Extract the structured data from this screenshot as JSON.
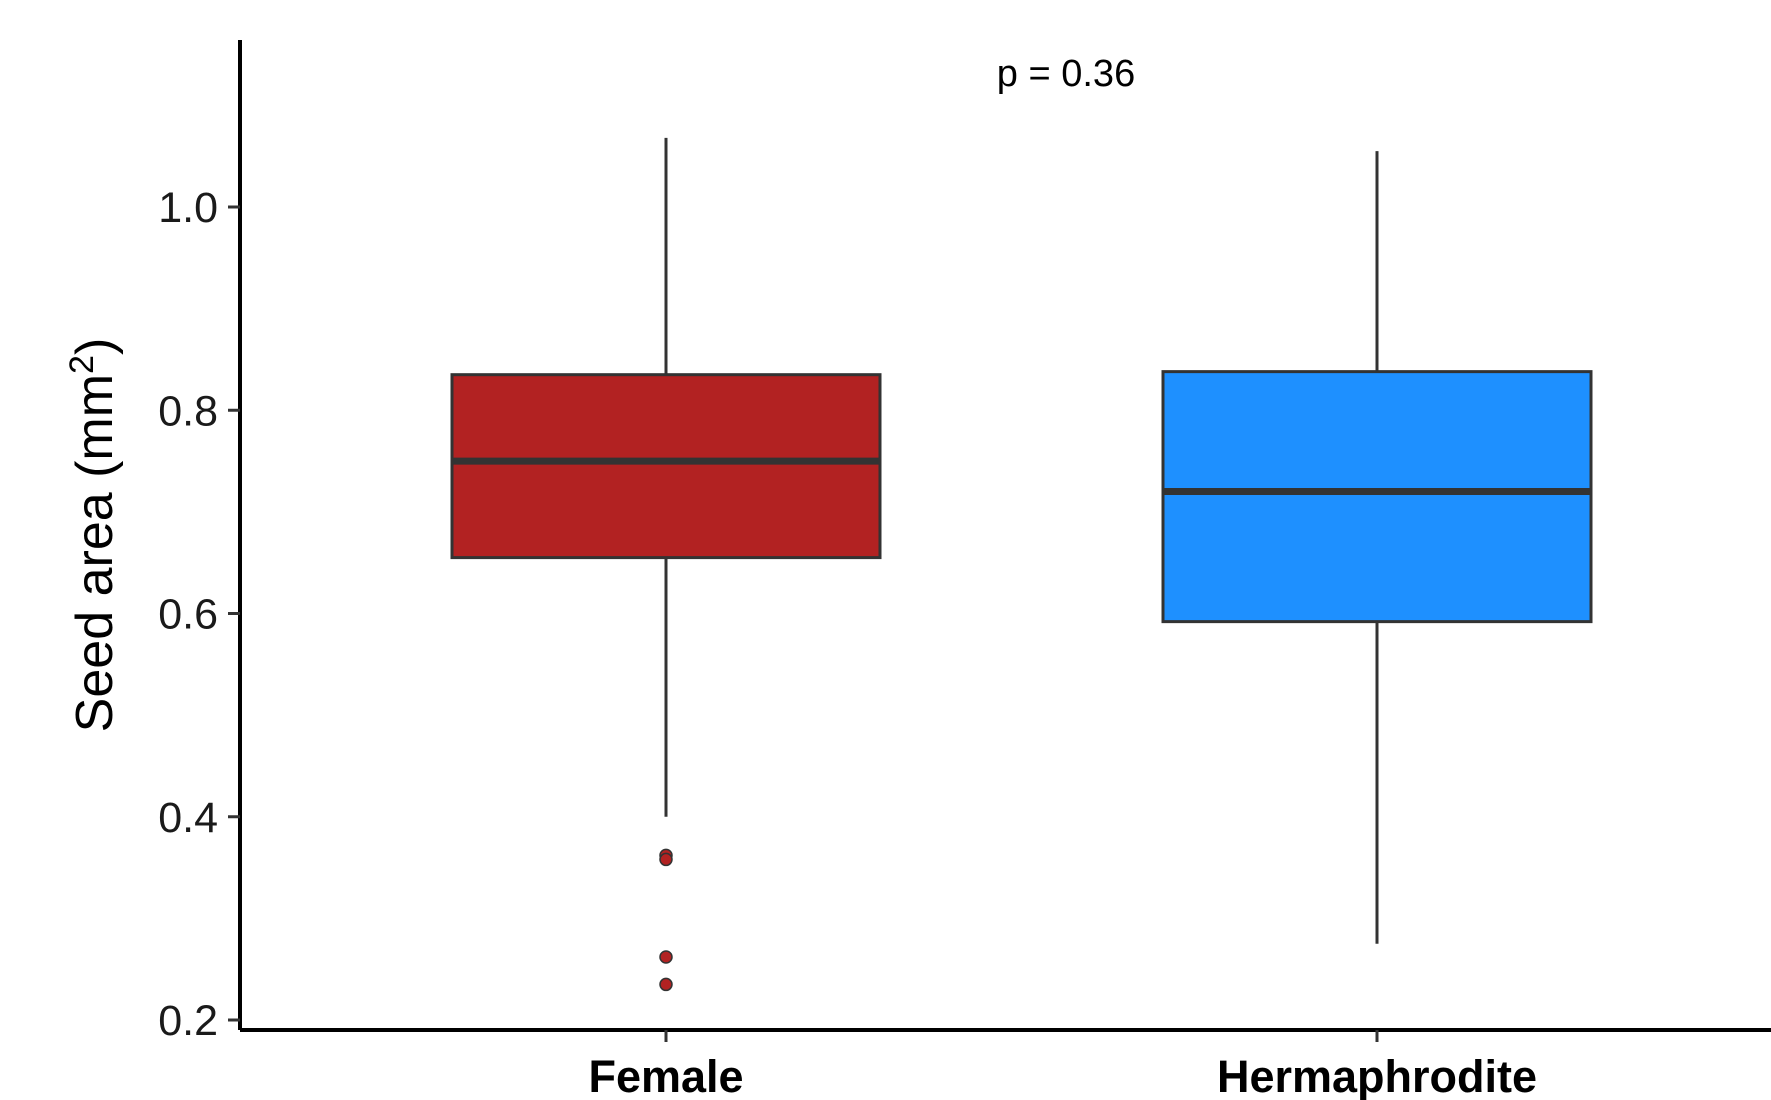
{
  "chart_data": {
    "type": "boxplot",
    "ylabel": "Seed area (mm",
    "ylabel_superscript": "2",
    "ylabel_close": ")",
    "xlabel": "",
    "ylim": [
      0.2,
      1.2
    ],
    "yticks": [
      0.2,
      0.4,
      0.6,
      0.8,
      1.0
    ],
    "ytick_labels": [
      "0.2",
      "0.4",
      "0.6",
      "0.8",
      "1.0"
    ],
    "grid": false,
    "legend": "none",
    "annotation": "p = 0.36",
    "categories": [
      "Female",
      "Hermaphrodite"
    ],
    "boxes": [
      {
        "category": "Female",
        "color": "#B22222",
        "whisker_low": 0.4,
        "q1": 0.655,
        "median": 0.75,
        "q3": 0.835,
        "whisker_high": 1.068,
        "outliers": [
          0.362,
          0.358,
          0.262,
          0.235
        ]
      },
      {
        "category": "Hermaphrodite",
        "color": "#1E90FF",
        "whisker_low": 0.275,
        "q1": 0.592,
        "median": 0.72,
        "q3": 0.838,
        "whisker_high": 1.055,
        "outliers": []
      }
    ]
  }
}
